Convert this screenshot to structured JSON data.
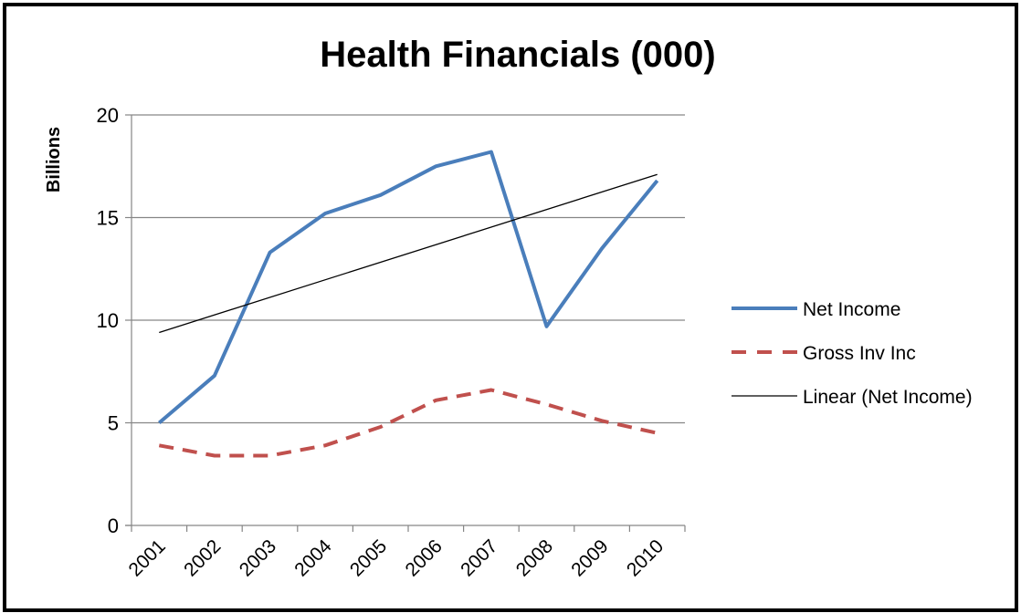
{
  "chart_data": {
    "type": "line",
    "title": "Health Financials (000)",
    "xlabel": "",
    "ylabel": "Billions",
    "ylim": [
      0,
      20
    ],
    "yticks": [
      0,
      5,
      10,
      15,
      20
    ],
    "categories": [
      "2001",
      "2002",
      "2003",
      "2004",
      "2005",
      "2006",
      "2007",
      "2008",
      "2009",
      "2010"
    ],
    "grid": "horizontal",
    "legend_position": "right",
    "series": [
      {
        "name": "Net Income",
        "values": [
          5.0,
          7.3,
          13.3,
          15.2,
          16.1,
          17.5,
          18.2,
          9.7,
          13.5,
          16.8
        ],
        "color": "#4a7ebb",
        "style": "solid"
      },
      {
        "name": "Gross Inv Inc",
        "values": [
          3.9,
          3.4,
          3.4,
          3.9,
          4.8,
          6.1,
          6.6,
          5.9,
          5.1,
          4.5
        ],
        "color": "#c0504d",
        "style": "dashed"
      },
      {
        "name": "Linear (Net Income)",
        "values": [
          9.4,
          10.25,
          11.1,
          11.95,
          12.8,
          13.65,
          14.5,
          15.35,
          16.2,
          17.1
        ],
        "color": "#000000",
        "style": "thin"
      }
    ]
  }
}
